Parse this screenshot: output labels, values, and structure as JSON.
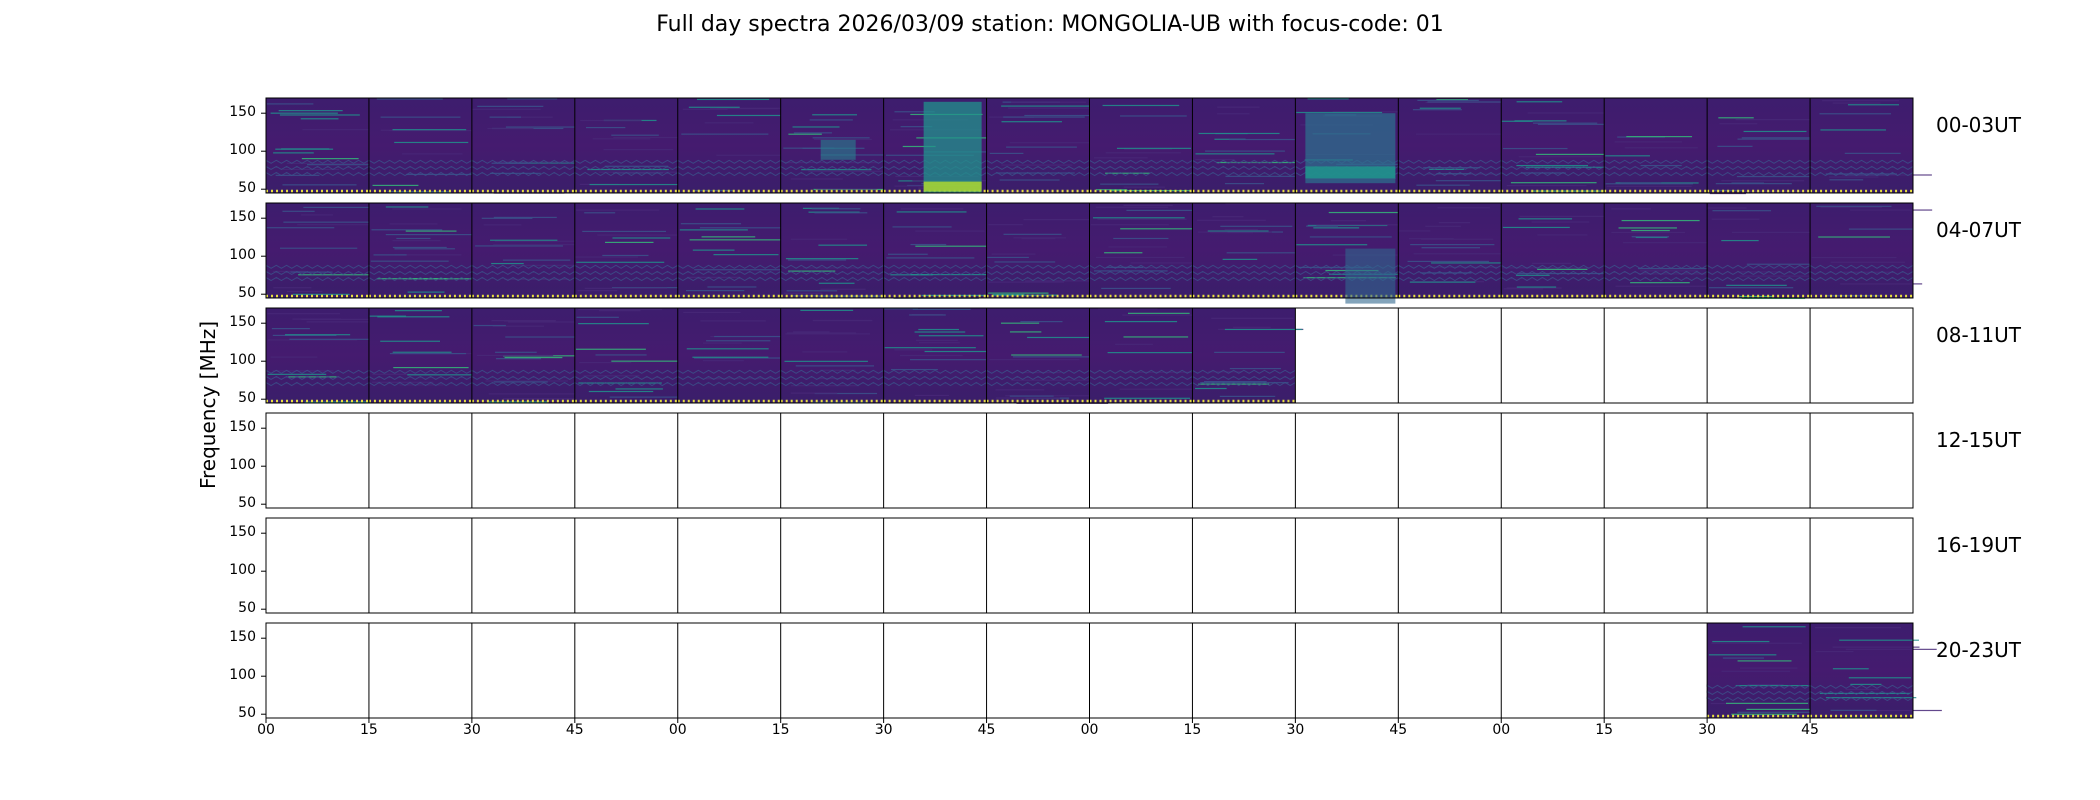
{
  "chart_data": {
    "type": "heatmap",
    "title": "Full day spectra 2026/03/09 station: MONGOLIA-UB with focus-code: 01",
    "ylabel": "Frequency [MHz]",
    "xlabel": "",
    "ylim": [
      45,
      170
    ],
    "yticks": [
      "150",
      "100",
      "50"
    ],
    "xticks": [
      "00",
      "15",
      "30",
      "45",
      "00",
      "15",
      "30",
      "45",
      "00",
      "15",
      "30",
      "45",
      "00",
      "15",
      "30",
      "45"
    ],
    "colormap": "viridis",
    "colors": {
      "low": "#440154",
      "mid": "#31688e",
      "high": "#fde725",
      "marker": "#e8e040"
    },
    "rows": [
      {
        "label": "00-03UT",
        "panels_with_data": [
          1,
          1,
          1,
          1,
          1,
          1,
          1,
          1,
          1,
          1,
          1,
          1,
          1,
          1,
          1,
          1
        ]
      },
      {
        "label": "04-07UT",
        "panels_with_data": [
          1,
          1,
          1,
          1,
          1,
          1,
          1,
          1,
          1,
          1,
          1,
          1,
          1,
          1,
          1,
          1
        ]
      },
      {
        "label": "08-11UT",
        "panels_with_data": [
          1,
          1,
          1,
          1,
          1,
          1,
          1,
          1,
          1,
          1,
          0,
          0,
          0,
          0,
          0,
          0
        ]
      },
      {
        "label": "12-15UT",
        "panels_with_data": [
          0,
          0,
          0,
          0,
          0,
          0,
          0,
          0,
          0,
          0,
          0,
          0,
          0,
          0,
          0,
          0
        ]
      },
      {
        "label": "16-19UT",
        "panels_with_data": [
          0,
          0,
          0,
          0,
          0,
          0,
          0,
          0,
          0,
          0,
          0,
          0,
          0,
          0,
          0,
          0
        ]
      },
      {
        "label": "20-23UT",
        "panels_with_data": [
          0,
          0,
          0,
          0,
          0,
          0,
          0,
          0,
          0,
          0,
          0,
          0,
          0,
          0,
          1,
          1
        ]
      }
    ]
  }
}
